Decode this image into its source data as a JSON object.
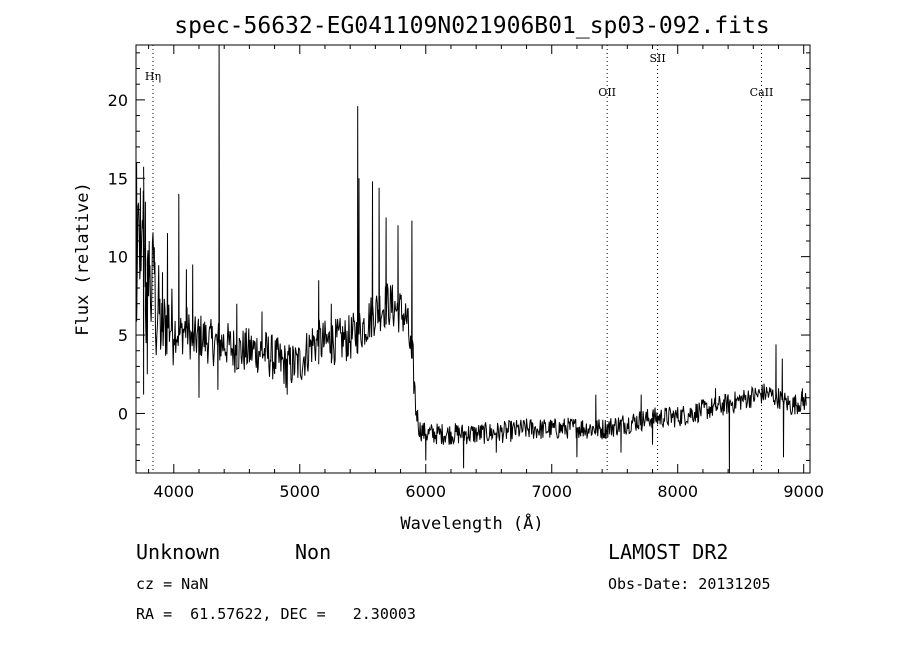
{
  "chart_data": {
    "type": "line",
    "title": "spec-56632-EG041109N021906B01_sp03-092.fits",
    "xlabel": "Wavelength (Å)",
    "ylabel": "Flux (relative)",
    "xlim": [
      3700,
      9050
    ],
    "ylim": [
      -3.8,
      23.5
    ],
    "xticks": [
      4000,
      5000,
      6000,
      7000,
      8000,
      9000
    ],
    "yticks": [
      0,
      5,
      10,
      15,
      20
    ],
    "grid": false,
    "legend": "none",
    "line_markers": [
      {
        "name": "Hη",
        "x": 3835
      },
      {
        "name": "OII",
        "x": 7440
      },
      {
        "name": "SII",
        "x": 7840
      },
      {
        "name": "CaII",
        "x": 8665
      }
    ],
    "anchors": [
      [
        3700,
        5.0
      ],
      [
        3720,
        12.5
      ],
      [
        3740,
        8.0
      ],
      [
        3760,
        14.2
      ],
      [
        3780,
        6.0
      ],
      [
        3800,
        9.5
      ],
      [
        3820,
        7.0
      ],
      [
        3840,
        10.5
      ],
      [
        3860,
        5.5
      ],
      [
        3880,
        7.0
      ],
      [
        3900,
        5.0
      ],
      [
        3950,
        6.0
      ],
      [
        4000,
        5.5
      ],
      [
        4050,
        5.0
      ],
      [
        4100,
        5.5
      ],
      [
        4150,
        4.5
      ],
      [
        4200,
        5.0
      ],
      [
        4300,
        4.5
      ],
      [
        4400,
        4.5
      ],
      [
        4500,
        4.0
      ],
      [
        4600,
        4.0
      ],
      [
        4700,
        4.0
      ],
      [
        4800,
        3.5
      ],
      [
        4900,
        3.0
      ],
      [
        5000,
        3.2
      ],
      [
        5100,
        4.5
      ],
      [
        5200,
        4.5
      ],
      [
        5300,
        4.6
      ],
      [
        5400,
        4.8
      ],
      [
        5500,
        5.5
      ],
      [
        5600,
        6.5
      ],
      [
        5700,
        7.0
      ],
      [
        5800,
        6.5
      ],
      [
        5850,
        6.0
      ],
      [
        5880,
        4.0
      ],
      [
        5900,
        3.0
      ],
      [
        5920,
        0.5
      ],
      [
        5950,
        -1.0
      ],
      [
        6000,
        -1.3
      ],
      [
        6200,
        -1.3
      ],
      [
        6400,
        -1.3
      ],
      [
        6600,
        -1.2
      ],
      [
        6800,
        -1.0
      ],
      [
        7000,
        -1.0
      ],
      [
        7200,
        -0.9
      ],
      [
        7400,
        -1.0
      ],
      [
        7600,
        -0.6
      ],
      [
        7800,
        -0.3
      ],
      [
        8000,
        -0.2
      ],
      [
        8200,
        0.2
      ],
      [
        8400,
        0.6
      ],
      [
        8600,
        1.1
      ],
      [
        8700,
        1.3
      ],
      [
        8800,
        1.0
      ],
      [
        8900,
        0.5
      ],
      [
        9000,
        0.8
      ]
    ],
    "spikes": [
      [
        3705,
        16.0
      ],
      [
        3735,
        14.4
      ],
      [
        3775,
        13.5
      ],
      [
        3805,
        11.0
      ],
      [
        3845,
        10.6
      ],
      [
        3910,
        9.0
      ],
      [
        3950,
        11.5
      ],
      [
        4040,
        14.0
      ],
      [
        4100,
        9.2
      ],
      [
        4150,
        9.5
      ],
      [
        4360,
        23.5
      ],
      [
        5460,
        19.6
      ],
      [
        5470,
        15.0
      ],
      [
        5577,
        14.8
      ],
      [
        5630,
        14.4
      ],
      [
        5685,
        12.5
      ],
      [
        5780,
        12.0
      ],
      [
        5890,
        12.3
      ],
      [
        7350,
        1.2
      ],
      [
        7710,
        1.2
      ],
      [
        8300,
        1.6
      ],
      [
        8780,
        4.4
      ],
      [
        8830,
        3.5
      ],
      [
        8990,
        1.6
      ],
      [
        4500,
        7.0
      ],
      [
        4700,
        6.5
      ],
      [
        5150,
        8.5
      ],
      [
        5250,
        7.0
      ]
    ],
    "dips": [
      [
        3760,
        1.2
      ],
      [
        3790,
        2.5
      ],
      [
        4200,
        1.0
      ],
      [
        4350,
        1.5
      ],
      [
        4900,
        1.2
      ],
      [
        6000,
        -3.0
      ],
      [
        6300,
        -3.5
      ],
      [
        6560,
        -2.5
      ],
      [
        7200,
        -2.8
      ],
      [
        7550,
        -2.5
      ],
      [
        7800,
        -2.0
      ],
      [
        8410,
        -3.8
      ],
      [
        8840,
        -2.8
      ]
    ]
  },
  "footer": {
    "object_class": "Unknown",
    "subclass": "Non",
    "cz": "cz = NaN",
    "coords": "RA =  61.57622, DEC =   2.30003",
    "survey": "LAMOST DR2",
    "obs_date": "Obs-Date: 20131205"
  }
}
